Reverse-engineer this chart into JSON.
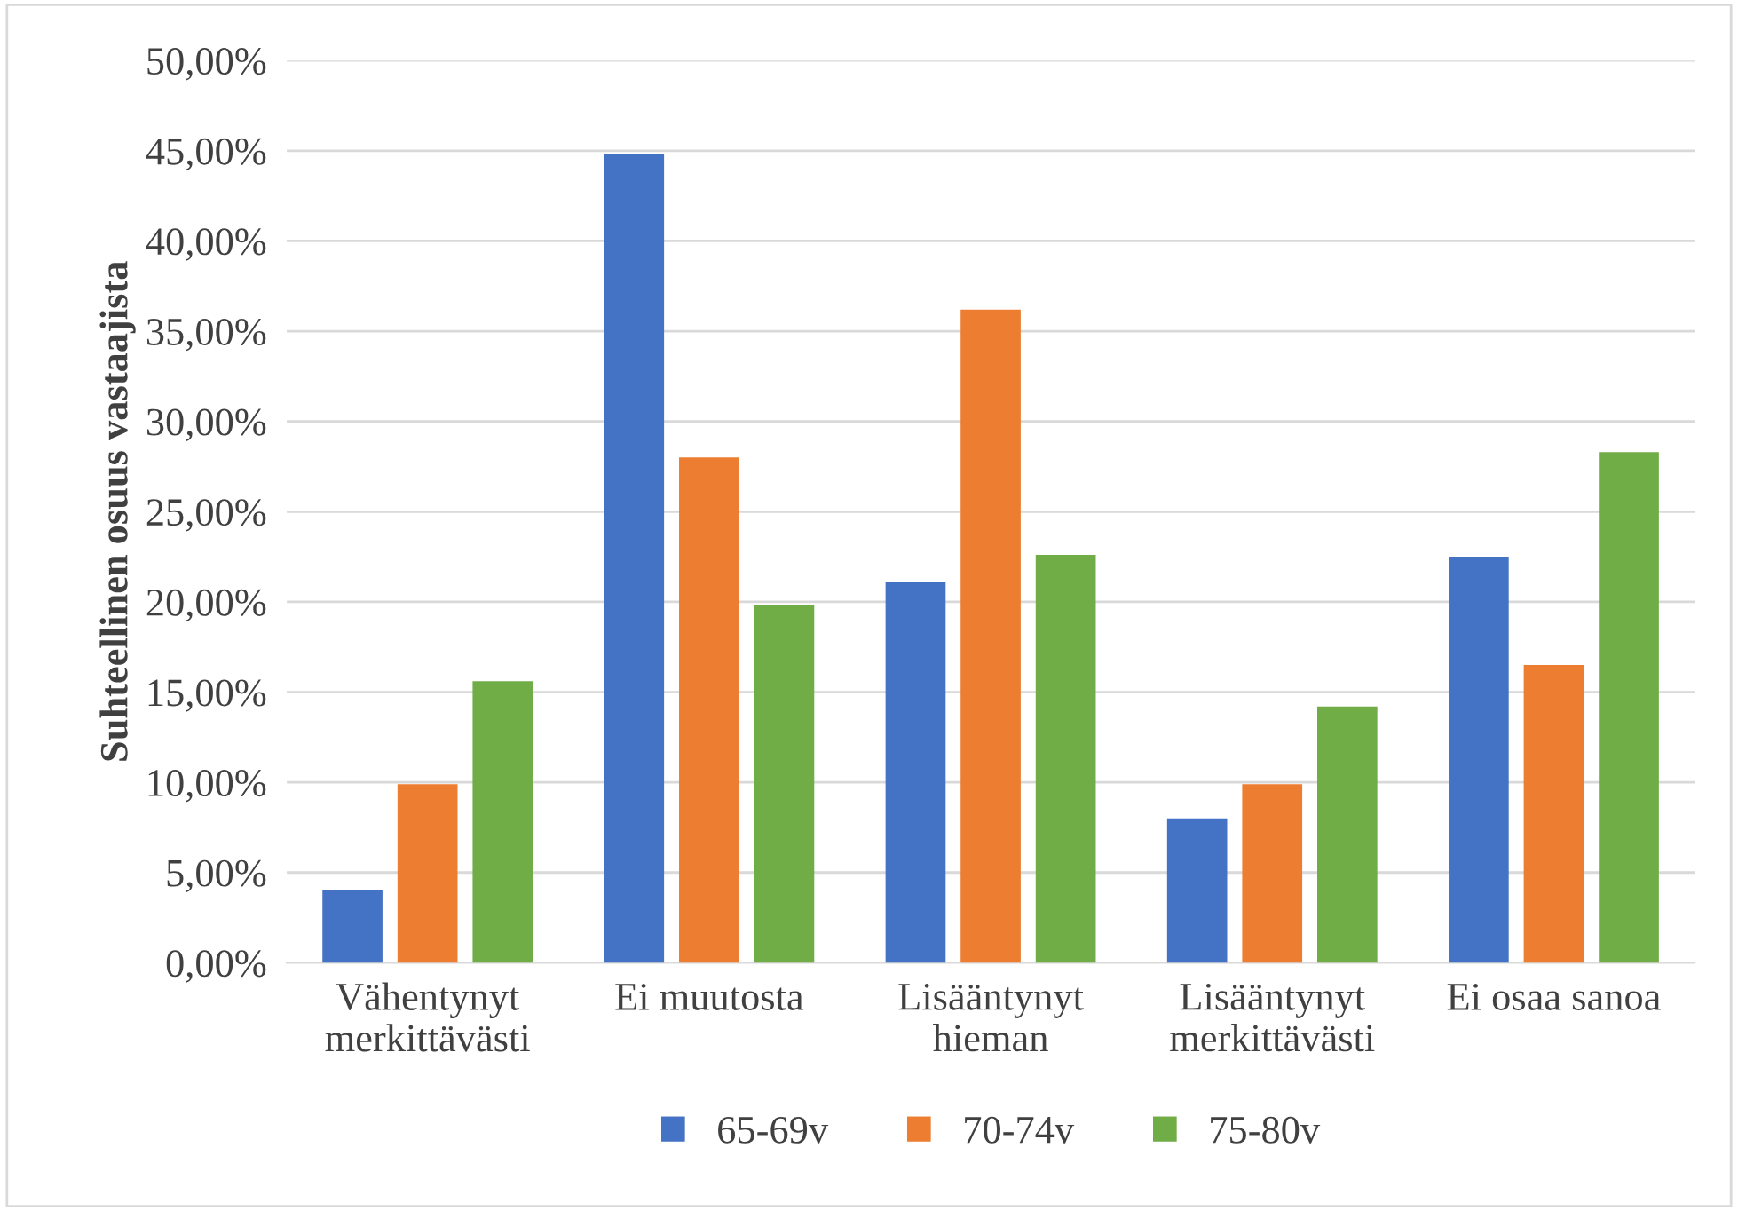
{
  "chart_data": {
    "type": "bar",
    "ylabel": "Suhteellinen osuus vastaajista",
    "categories": [
      "Vähentynyt\nmerkittävästi",
      "Ei muutosta",
      "Lisääntynyt\nhieman",
      "Lisääntynyt\nmerkittävästi",
      "Ei osaa sanoa"
    ],
    "series": [
      {
        "name": "65-69v",
        "color": "#4472c4",
        "values": [
          4.0,
          44.8,
          21.1,
          8.0,
          22.5
        ]
      },
      {
        "name": "70-74v",
        "color": "#ed7d31",
        "values": [
          9.9,
          28.0,
          36.2,
          9.9,
          16.5
        ]
      },
      {
        "name": "75-80v",
        "color": "#70ad47",
        "values": [
          15.6,
          19.8,
          22.6,
          14.2,
          28.3
        ]
      }
    ],
    "ylim": [
      0,
      50
    ],
    "yticks": [
      {
        "value": 0,
        "label": "0,00%"
      },
      {
        "value": 5,
        "label": "5,00%"
      },
      {
        "value": 10,
        "label": "10,00%"
      },
      {
        "value": 15,
        "label": "15,00%"
      },
      {
        "value": 20,
        "label": "20,00%"
      },
      {
        "value": 25,
        "label": "25,00%"
      },
      {
        "value": 30,
        "label": "30,00%"
      },
      {
        "value": 35,
        "label": "35,00%"
      },
      {
        "value": 40,
        "label": "40,00%"
      },
      {
        "value": 45,
        "label": "45,00%"
      },
      {
        "value": 50,
        "label": "50,00%"
      }
    ],
    "grid": "y",
    "legend": "bottom"
  }
}
